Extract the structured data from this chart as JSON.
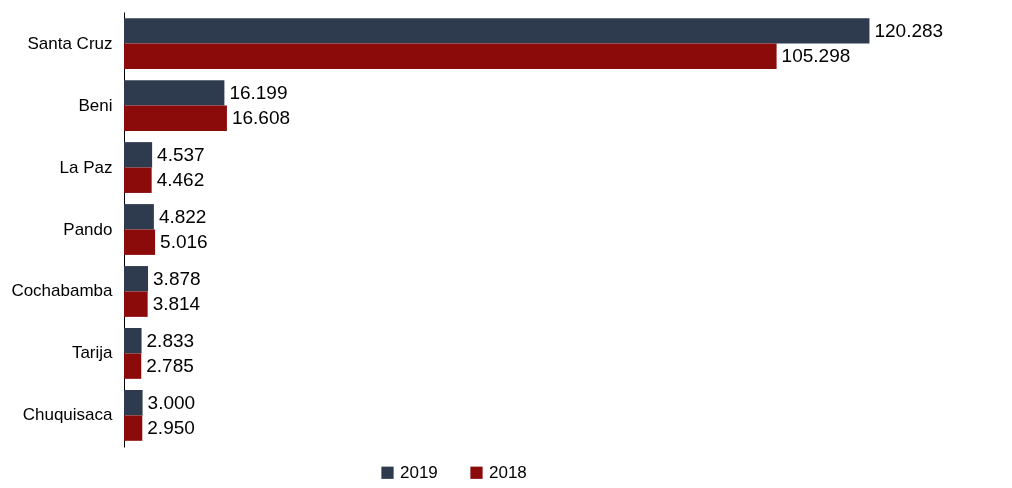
{
  "chart_data": {
    "type": "bar",
    "orientation": "horizontal",
    "categories": [
      "Santa Cruz",
      "Beni",
      "La Paz",
      "Pando",
      "Cochabamba",
      "Tarija",
      "Chuquisaca"
    ],
    "series": [
      {
        "name": "2019",
        "color": "#2e3a4e",
        "values": [
          120283,
          16199,
          4537,
          4822,
          3878,
          2833,
          3000
        ],
        "value_labels": [
          "120.283",
          "16.199",
          "4.537",
          "4.822",
          "3.878",
          "2.833",
          "3.000"
        ]
      },
      {
        "name": "2018",
        "color": "#8b0a0a",
        "values": [
          105298,
          16608,
          4462,
          5016,
          3814,
          2785,
          2950
        ],
        "value_labels": [
          "105.298",
          "16.608",
          "4.462",
          "5.016",
          "3.814",
          "2.785",
          "2.950"
        ]
      }
    ],
    "legend": "bottom",
    "tick_labels": "y"
  }
}
